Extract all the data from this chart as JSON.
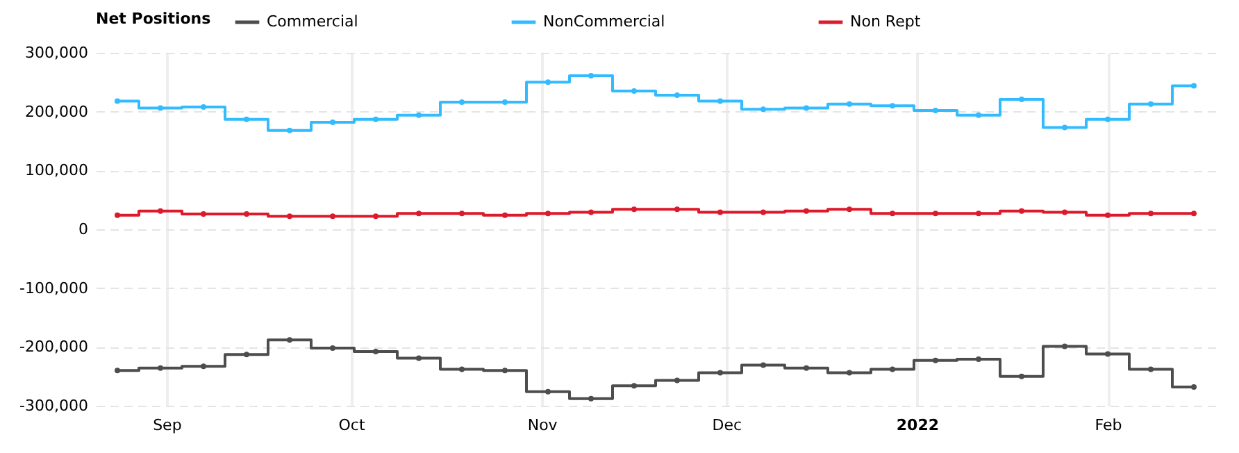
{
  "chart_data": {
    "type": "step",
    "legend_title": "Net Positions",
    "legend": "top",
    "grid": true,
    "marker": "circle",
    "line_style": "solid",
    "x": [
      "2021-08-24",
      "2021-08-31",
      "2021-09-07",
      "2021-09-14",
      "2021-09-21",
      "2021-09-28",
      "2021-10-05",
      "2021-10-12",
      "2021-10-19",
      "2021-10-26",
      "2021-11-02",
      "2021-11-09",
      "2021-11-16",
      "2021-11-23",
      "2021-11-30",
      "2021-12-07",
      "2021-12-14",
      "2021-12-21",
      "2021-12-28",
      "2022-01-04",
      "2022-01-11",
      "2022-01-18",
      "2022-01-25",
      "2022-02-01",
      "2022-02-08",
      "2022-02-15"
    ],
    "xlim": [
      "2021-08-20T12:00",
      "2022-02-18T12:00"
    ],
    "xticks": [
      {
        "value": "2021-09-01",
        "label": "Sep"
      },
      {
        "value": "2021-10-01",
        "label": "Oct"
      },
      {
        "value": "2021-11-01",
        "label": "Nov"
      },
      {
        "value": "2021-12-01",
        "label": "Dec"
      },
      {
        "value": "2022-01-01",
        "label": "2022"
      },
      {
        "value": "2022-02-01",
        "label": "Feb"
      }
    ],
    "ylim": [
      -300000,
      300000
    ],
    "yticks": [
      {
        "value": -300000,
        "label": "-300,000"
      },
      {
        "value": -200000,
        "label": "-200,000"
      },
      {
        "value": -100000,
        "label": "-100,000"
      },
      0,
      {
        "value": 100000,
        "label": "100,000"
      },
      {
        "value": 200000,
        "label": "200,000"
      },
      {
        "value": 300000,
        "label": "300,000"
      }
    ],
    "series": [
      {
        "name": "Commercial",
        "color": "#4d4d4d",
        "values": [
          -240000,
          -236000,
          -233000,
          -213000,
          -188000,
          -202000,
          -208000,
          -219000,
          -238000,
          -240000,
          -276000,
          -288000,
          -266000,
          -257000,
          -244000,
          -231000,
          -236000,
          -244000,
          -238000,
          -223000,
          -221000,
          -250000,
          -199000,
          -212000,
          -238000,
          -268000
        ]
      },
      {
        "name": "NonCommercial",
        "color": "#33bbff",
        "values": [
          218000,
          206000,
          208000,
          187000,
          168000,
          182000,
          187000,
          194000,
          216000,
          216000,
          250000,
          261000,
          235000,
          228000,
          218000,
          204000,
          206000,
          213000,
          210000,
          202000,
          194000,
          221000,
          173000,
          187000,
          213000,
          244000
        ]
      },
      {
        "name": "Non Rept",
        "color": "#dc1a2b",
        "values": [
          24000,
          31000,
          26000,
          26000,
          22000,
          22000,
          22000,
          27000,
          27000,
          24000,
          27000,
          29000,
          34000,
          34000,
          29000,
          29000,
          31000,
          34000,
          27000,
          27000,
          27000,
          31000,
          29000,
          24000,
          27000,
          27000
        ]
      }
    ]
  }
}
